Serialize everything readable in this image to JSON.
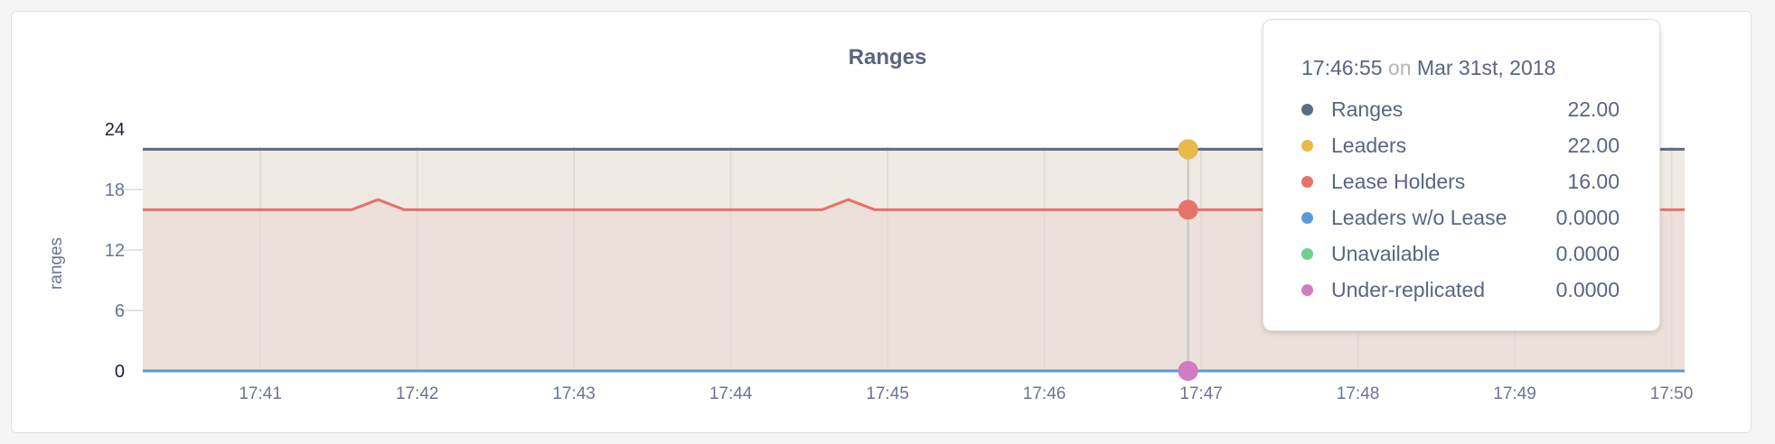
{
  "chart_data": {
    "type": "area",
    "title": "Ranges",
    "ylabel": "ranges",
    "xlabel": "",
    "ylim": [
      0,
      24
    ],
    "yticks": [
      "0",
      "6",
      "12",
      "18",
      "24"
    ],
    "xticks": [
      "17:41",
      "17:42",
      "17:43",
      "17:44",
      "17:45",
      "17:46",
      "17:47",
      "17:48",
      "17:49",
      "17:50"
    ],
    "xlim": [
      "17:40:15",
      "17:50:05"
    ],
    "grid": true,
    "x": [
      "17:40:15",
      "17:40:25",
      "17:40:35",
      "17:40:45",
      "17:40:55",
      "17:41:05",
      "17:41:15",
      "17:41:25",
      "17:41:35",
      "17:41:45",
      "17:41:55",
      "17:42:05",
      "17:42:15",
      "17:42:25",
      "17:42:35",
      "17:42:45",
      "17:42:55",
      "17:43:05",
      "17:43:15",
      "17:43:25",
      "17:43:35",
      "17:43:45",
      "17:43:55",
      "17:44:05",
      "17:44:15",
      "17:44:25",
      "17:44:35",
      "17:44:45",
      "17:44:55",
      "17:45:05",
      "17:45:15",
      "17:45:25",
      "17:45:35",
      "17:45:45",
      "17:45:55",
      "17:46:05",
      "17:46:15",
      "17:46:25",
      "17:46:35",
      "17:46:45",
      "17:46:55",
      "17:47:05",
      "17:47:15",
      "17:47:25",
      "17:47:35",
      "17:47:45",
      "17:47:55",
      "17:48:05",
      "17:48:15",
      "17:48:25",
      "17:48:35",
      "17:48:45",
      "17:48:55",
      "17:49:05",
      "17:49:15",
      "17:49:25",
      "17:49:35",
      "17:49:45",
      "17:49:55",
      "17:50:05"
    ],
    "series": [
      {
        "name": "Ranges",
        "color": "#5f6b86",
        "fill": false,
        "values": [
          22,
          22,
          22,
          22,
          22,
          22,
          22,
          22,
          22,
          22,
          22,
          22,
          22,
          22,
          22,
          22,
          22,
          22,
          22,
          22,
          22,
          22,
          22,
          22,
          22,
          22,
          22,
          22,
          22,
          22,
          22,
          22,
          22,
          22,
          22,
          22,
          22,
          22,
          22,
          22,
          22,
          22,
          22,
          22,
          22,
          22,
          22,
          22,
          22,
          22,
          22,
          22,
          22,
          22,
          22,
          22,
          22,
          22,
          22,
          22
        ]
      },
      {
        "name": "Leaders",
        "color": "#e9b949",
        "fill": "#efebe4",
        "values": [
          22,
          22,
          22,
          22,
          22,
          22,
          22,
          22,
          22,
          22,
          22,
          22,
          22,
          22,
          22,
          22,
          22,
          22,
          22,
          22,
          22,
          22,
          22,
          22,
          22,
          22,
          22,
          22,
          22,
          22,
          22,
          22,
          22,
          22,
          22,
          22,
          22,
          22,
          22,
          22,
          22,
          22,
          22,
          22,
          22,
          22,
          22,
          22,
          22,
          22,
          22,
          22,
          22,
          22,
          22,
          22,
          22,
          22,
          22,
          22
        ]
      },
      {
        "name": "Lease Holders",
        "color": "#e5736b",
        "fill": "#ede0da",
        "values": [
          16,
          16,
          16,
          16,
          16,
          16,
          16,
          16,
          16,
          17,
          16,
          16,
          16,
          16,
          16,
          16,
          16,
          16,
          16,
          16,
          16,
          16,
          16,
          16,
          16,
          16,
          16,
          17,
          16,
          16,
          16,
          16,
          16,
          16,
          16,
          16,
          16,
          16,
          16,
          16,
          16,
          16,
          16,
          16,
          16,
          16,
          16,
          16,
          16,
          16,
          16,
          16,
          16,
          16,
          16,
          16,
          16,
          16,
          16,
          16
        ]
      },
      {
        "name": "Leaders w/o Lease",
        "color": "#5b9bd5",
        "fill": false,
        "values": [
          0,
          0,
          0,
          0,
          0,
          0,
          0,
          0,
          0,
          0,
          0,
          0,
          0,
          0,
          0,
          0,
          0,
          0,
          0,
          0,
          0,
          0,
          0,
          0,
          0,
          0,
          0,
          0,
          0,
          0,
          0,
          0,
          0,
          0,
          0,
          0,
          0,
          0,
          0,
          0,
          0,
          0,
          0,
          0,
          0,
          0,
          0,
          0,
          0,
          0,
          0,
          0,
          0,
          0,
          0,
          0,
          0,
          0,
          0,
          0
        ]
      },
      {
        "name": "Unavailable",
        "color": "#6fd08c",
        "fill": false,
        "values": [
          0,
          0,
          0,
          0,
          0,
          0,
          0,
          0,
          0,
          0,
          0,
          0,
          0,
          0,
          0,
          0,
          0,
          0,
          0,
          0,
          0,
          0,
          0,
          0,
          0,
          0,
          0,
          0,
          0,
          0,
          0,
          0,
          0,
          0,
          0,
          0,
          0,
          0,
          0,
          0,
          0,
          0,
          0,
          0,
          0,
          0,
          0,
          0,
          0,
          0,
          0,
          0,
          0,
          0,
          0,
          0,
          0,
          0,
          0,
          0
        ]
      },
      {
        "name": "Under-replicated",
        "color": "#d17bc2",
        "fill": false,
        "values": [
          0,
          0,
          0,
          0,
          0,
          0,
          0,
          0,
          0,
          0,
          0,
          0,
          0,
          0,
          0,
          0,
          0,
          0,
          0,
          0,
          0,
          0,
          0,
          0,
          0,
          0,
          0,
          0,
          0,
          0,
          0,
          0,
          0,
          0,
          0,
          0,
          0,
          0,
          0,
          0,
          0,
          0,
          0,
          0,
          0,
          0,
          0,
          0,
          0,
          0,
          0,
          0,
          0,
          0,
          0,
          0,
          0,
          0,
          0,
          0
        ]
      }
    ],
    "hover": {
      "time": "17:46:55"
    }
  },
  "tooltip": {
    "time": "17:46:55",
    "on": "on",
    "date": "Mar 31st, 2018",
    "rows": [
      {
        "label": "Ranges",
        "value": "22.00",
        "color": "#5f6b86"
      },
      {
        "label": "Leaders",
        "value": "22.00",
        "color": "#e9b949"
      },
      {
        "label": "Lease Holders",
        "value": "16.00",
        "color": "#e5736b"
      },
      {
        "label": "Leaders w/o Lease",
        "value": "0.0000",
        "color": "#5b9bd5"
      },
      {
        "label": "Unavailable",
        "value": "0.0000",
        "color": "#6fd08c"
      },
      {
        "label": "Under-replicated",
        "value": "0.0000",
        "color": "#d17bc2"
      }
    ]
  }
}
